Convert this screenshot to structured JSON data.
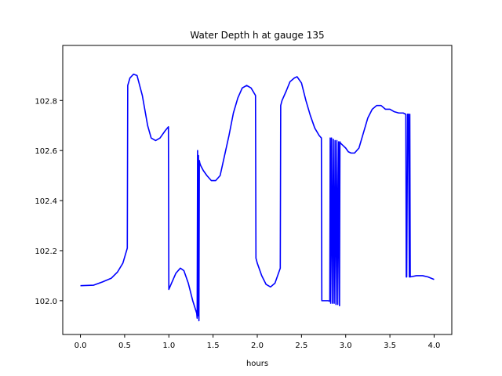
{
  "chart_data": {
    "type": "line",
    "title": "Water Depth h at gauge 135",
    "xlabel": "hours",
    "ylabel": "",
    "xlim": [
      -0.2,
      4.2
    ],
    "ylim": [
      101.865,
      103.02
    ],
    "grid": false,
    "legend": "none",
    "x_ticks": [
      0.0,
      0.5,
      1.0,
      1.5,
      2.0,
      2.5,
      3.0,
      3.5,
      4.0
    ],
    "x_tick_labels": [
      "0.0",
      "0.5",
      "1.0",
      "1.5",
      "2.0",
      "2.5",
      "3.0",
      "3.5",
      "4.0"
    ],
    "y_ticks": [
      102.0,
      102.2,
      102.4,
      102.6,
      102.8
    ],
    "y_tick_labels": [
      "102.0",
      "102.2",
      "102.4",
      "102.6",
      "102.8"
    ],
    "series": [
      {
        "color": "#0000ff",
        "x": [
          0.0,
          0.15,
          0.25,
          0.35,
          0.42,
          0.48,
          0.53,
          0.535,
          0.56,
          0.6,
          0.64,
          0.7,
          0.76,
          0.8,
          0.85,
          0.9,
          0.96,
          0.995,
          1.0,
          1.03,
          1.08,
          1.13,
          1.17,
          1.22,
          1.27,
          1.315,
          1.32,
          1.325,
          1.33,
          1.335,
          1.34,
          1.345,
          1.35,
          1.36,
          1.39,
          1.43,
          1.48,
          1.53,
          1.58,
          1.63,
          1.68,
          1.73,
          1.78,
          1.83,
          1.88,
          1.93,
          1.98,
          1.985,
          2.0,
          2.05,
          2.1,
          2.15,
          2.2,
          2.26,
          2.265,
          2.28,
          2.33,
          2.37,
          2.42,
          2.45,
          2.5,
          2.55,
          2.6,
          2.65,
          2.7,
          2.725,
          2.73,
          2.8,
          2.82,
          2.825,
          2.83,
          2.84,
          2.85,
          2.86,
          2.87,
          2.88,
          2.89,
          2.9,
          2.91,
          2.92,
          2.93,
          2.935,
          2.94,
          2.97,
          3.0,
          3.03,
          3.06,
          3.1,
          3.15,
          3.2,
          3.25,
          3.3,
          3.35,
          3.4,
          3.45,
          3.5,
          3.55,
          3.6,
          3.65,
          3.68,
          3.685,
          3.69,
          3.7,
          3.71,
          3.72,
          3.725,
          3.73,
          3.8,
          3.87,
          3.93,
          4.0
        ],
        "y": [
          102.06,
          102.062,
          102.075,
          102.09,
          102.115,
          102.15,
          102.21,
          102.86,
          102.89,
          102.905,
          102.9,
          102.82,
          102.7,
          102.65,
          102.64,
          102.65,
          102.68,
          102.695,
          102.045,
          102.07,
          102.11,
          102.13,
          102.12,
          102.07,
          102.0,
          101.95,
          101.93,
          102.6,
          101.94,
          102.58,
          101.92,
          102.56,
          102.55,
          102.54,
          102.52,
          102.5,
          102.48,
          102.48,
          102.5,
          102.58,
          102.66,
          102.75,
          102.81,
          102.85,
          102.86,
          102.85,
          102.82,
          102.17,
          102.15,
          102.1,
          102.065,
          102.055,
          102.07,
          102.13,
          102.78,
          102.8,
          102.84,
          102.875,
          102.89,
          102.895,
          102.87,
          102.8,
          102.74,
          102.69,
          102.66,
          102.65,
          102.0,
          102.0,
          101.998,
          102.65,
          101.99,
          102.65,
          101.99,
          102.645,
          101.99,
          102.64,
          101.985,
          102.64,
          101.985,
          102.635,
          101.98,
          102.635,
          102.63,
          102.62,
          102.61,
          102.595,
          102.59,
          102.59,
          102.61,
          102.67,
          102.73,
          102.765,
          102.78,
          102.78,
          102.765,
          102.765,
          102.755,
          102.75,
          102.75,
          102.745,
          102.095,
          102.095,
          102.745,
          102.745,
          102.095,
          102.745,
          102.095,
          102.1,
          102.1,
          102.095,
          102.085
        ]
      }
    ]
  }
}
